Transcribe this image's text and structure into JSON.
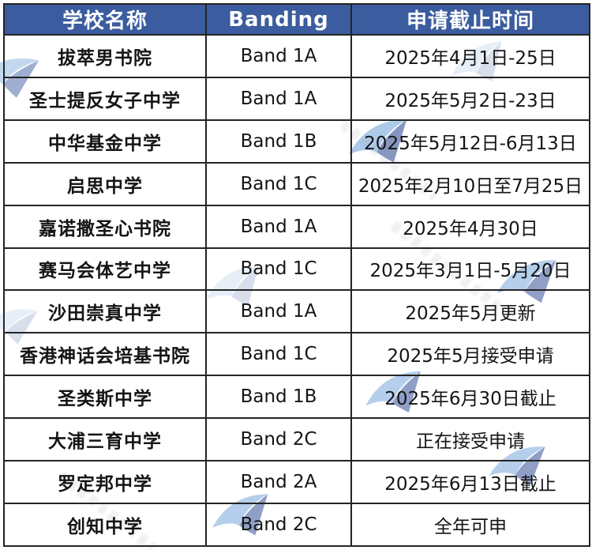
{
  "chart_data": {
    "type": "table",
    "title": "",
    "columns": [
      "学校名称",
      "Banding",
      "申请截止时间"
    ],
    "rows": [
      {
        "school": "拔萃男书院",
        "banding": "Band 1A",
        "deadline": "2025年4月1日-25日"
      },
      {
        "school": "圣士提反女子中学",
        "banding": "Band 1A",
        "deadline": "2025年5月2日-23日"
      },
      {
        "school": "中华基金中学",
        "banding": "Band 1B",
        "deadline": "2025年5月12日-6月13日"
      },
      {
        "school": "启思中学",
        "banding": "Band 1C",
        "deadline": "2025年2月10日至7月25日"
      },
      {
        "school": "嘉诺撒圣心书院",
        "banding": "Band 1A",
        "deadline": "2025年4月30日"
      },
      {
        "school": "赛马会体艺中学",
        "banding": "Band 1C",
        "deadline": "2025年3月1日-5月20日"
      },
      {
        "school": "沙田崇真中学",
        "banding": "Band 1A",
        "deadline": "2025年5月更新"
      },
      {
        "school": "香港神话会培基书院",
        "banding": "Band 1C",
        "deadline": "2025年5月接受申请"
      },
      {
        "school": "圣类斯中学",
        "banding": "Band 1B",
        "deadline": "2025年6月30日截止"
      },
      {
        "school": "大浦三育中学",
        "banding": "Band 2C",
        "deadline": "正在接受申请"
      },
      {
        "school": "罗定邦中学",
        "banding": "Band 2A",
        "deadline": "2025年6月13日截止"
      },
      {
        "school": "创知中学",
        "banding": "Band 2C",
        "deadline": "全年可申"
      }
    ]
  },
  "colors": {
    "header_bg": "#3b5c9e",
    "header_text": "#ffffff",
    "border": "#242424",
    "body_text": "#141414",
    "watermark_light_blue": "#6b9fd8",
    "watermark_navy": "#24418f"
  }
}
